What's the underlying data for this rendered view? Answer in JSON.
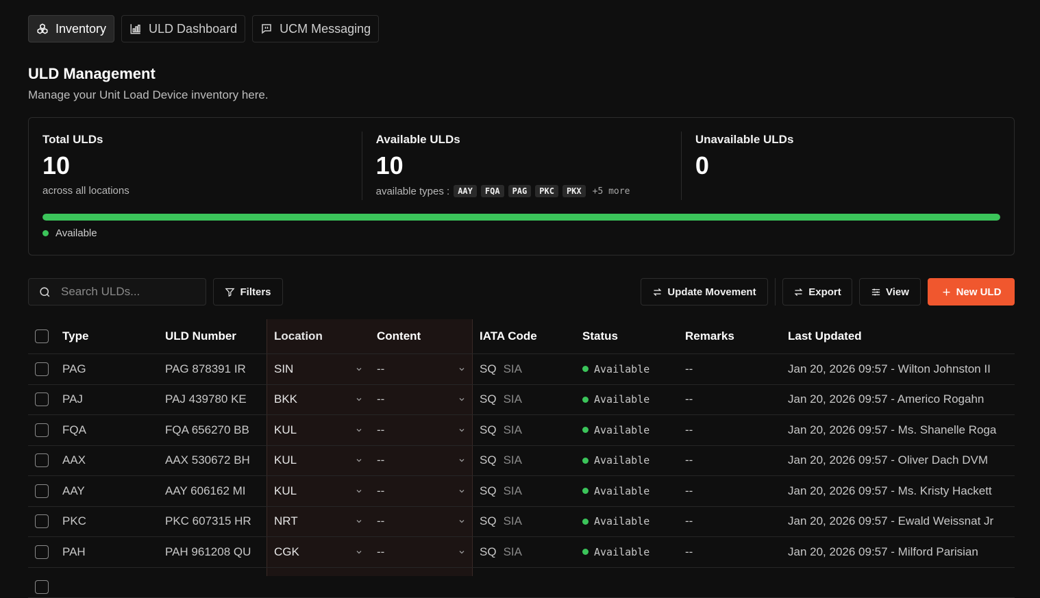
{
  "tabs": [
    {
      "label": "Inventory",
      "icon": "boxes-icon",
      "active": true
    },
    {
      "label": "ULD Dashboard",
      "icon": "bar-chart-icon",
      "active": false
    },
    {
      "label": "UCM Messaging",
      "icon": "message-icon",
      "active": false
    }
  ],
  "header": {
    "title": "ULD Management",
    "subtitle": "Manage your Unit Load Device inventory here."
  },
  "stats": {
    "total": {
      "label": "Total ULDs",
      "value": "10",
      "note": "across all locations"
    },
    "available": {
      "label": "Available ULDs",
      "value": "10",
      "note": "available types :",
      "types": [
        "AAY",
        "FQA",
        "PAG",
        "PKC",
        "PKX"
      ],
      "more": "+5 more"
    },
    "unavailable": {
      "label": "Unavailable ULDs",
      "value": "0"
    },
    "available_fraction": 1.0,
    "legend": "Available",
    "accent": "#3bc45a"
  },
  "toolbar": {
    "search_placeholder": "Search ULDs...",
    "filters_label": "Filters",
    "update_label": "Update Movement",
    "export_label": "Export",
    "view_label": "View",
    "new_label": "New ULD",
    "primary_color": "#f0572e"
  },
  "table": {
    "headers": {
      "type": "Type",
      "number": "ULD Number",
      "location": "Location",
      "content": "Content",
      "iata": "IATA Code",
      "status": "Status",
      "remarks": "Remarks",
      "updated": "Last Updated"
    },
    "rows": [
      {
        "type": "PAG",
        "number": "PAG 878391 IR",
        "location": "SIN",
        "content": "--",
        "iata1": "SQ",
        "iata2": "SIA",
        "status": "Available",
        "remarks": "--",
        "updated": "Jan 20, 2026 09:57 - Wilton Johnston II"
      },
      {
        "type": "PAJ",
        "number": "PAJ 439780 KE",
        "location": "BKK",
        "content": "--",
        "iata1": "SQ",
        "iata2": "SIA",
        "status": "Available",
        "remarks": "--",
        "updated": "Jan 20, 2026 09:57 - Americo Rogahn"
      },
      {
        "type": "FQA",
        "number": "FQA 656270 BB",
        "location": "KUL",
        "content": "--",
        "iata1": "SQ",
        "iata2": "SIA",
        "status": "Available",
        "remarks": "--",
        "updated": "Jan 20, 2026 09:57 - Ms. Shanelle Roga"
      },
      {
        "type": "AAX",
        "number": "AAX 530672 BH",
        "location": "KUL",
        "content": "--",
        "iata1": "SQ",
        "iata2": "SIA",
        "status": "Available",
        "remarks": "--",
        "updated": "Jan 20, 2026 09:57 - Oliver Dach DVM"
      },
      {
        "type": "AAY",
        "number": "AAY 606162 MI",
        "location": "KUL",
        "content": "--",
        "iata1": "SQ",
        "iata2": "SIA",
        "status": "Available",
        "remarks": "--",
        "updated": "Jan 20, 2026 09:57 - Ms. Kristy Hackett"
      },
      {
        "type": "PKC",
        "number": "PKC 607315 HR",
        "location": "NRT",
        "content": "--",
        "iata1": "SQ",
        "iata2": "SIA",
        "status": "Available",
        "remarks": "--",
        "updated": "Jan 20, 2026 09:57 - Ewald Weissnat Jr"
      },
      {
        "type": "PAH",
        "number": "PAH 961208 QU",
        "location": "CGK",
        "content": "--",
        "iata1": "SQ",
        "iata2": "SIA",
        "status": "Available",
        "remarks": "--",
        "updated": "Jan 20, 2026 09:57 - Milford Parisian"
      }
    ]
  }
}
